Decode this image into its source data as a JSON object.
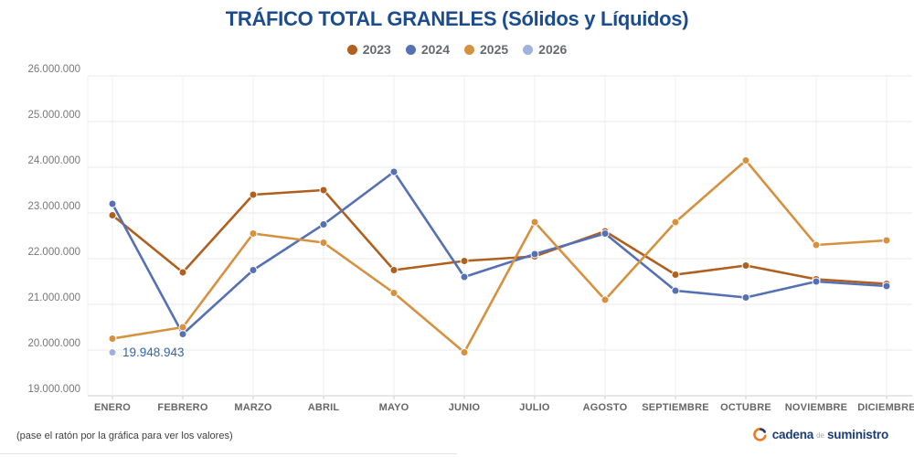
{
  "title": "TRÁFICO TOTAL GRANELES (Sólidos y Líquidos)",
  "footer": {
    "hint": "(pase el ratón por la gráfica para ver los valores)",
    "logo": {
      "part1": "cadena",
      "part2": "de",
      "part3": "suministro"
    }
  },
  "colors": {
    "title_blue": "#1b4c8f",
    "annotation_blue": "#3566a8",
    "grid_line": "#e8e8e8",
    "grid_line_vertical": "#efefef",
    "axis_line": "#cccccc",
    "y_label": "#777777",
    "x_label": "#666666",
    "logo_orange": "#e87c26",
    "logo_blue": "#223f77"
  },
  "chart_data": {
    "type": "line",
    "title": "TRÁFICO TOTAL GRANELES (Sólidos y Líquidos)",
    "categories": [
      "ENERO",
      "FEBRERO",
      "MARZO",
      "ABRIL",
      "MAYO",
      "JUNIO",
      "JULIO",
      "AGOSTO",
      "SEPTIEMBRE",
      "OCTUBRE",
      "NOVIEMBRE",
      "DICIEMBRE"
    ],
    "ylim": [
      19000000,
      26000000
    ],
    "y_tick_step": 1000000,
    "y_tick_labels": [
      "26.000.000",
      "25.000.000",
      "24.000.000",
      "23.000.000",
      "22.000.000",
      "21.000.000",
      "20.000.000",
      "19.000.000"
    ],
    "grid": true,
    "legend_position": "top",
    "series": [
      {
        "name": "2023",
        "color": "#b05f1e",
        "values": [
          22950000,
          21700000,
          23400000,
          23500000,
          21750000,
          21950000,
          22050000,
          22600000,
          21650000,
          21850000,
          21550000,
          21450000
        ]
      },
      {
        "name": "2024",
        "color": "#5571b4",
        "values": [
          23200000,
          20350000,
          21750000,
          22750000,
          23900000,
          21600000,
          22100000,
          22550000,
          21300000,
          21150000,
          21500000,
          21400000
        ]
      },
      {
        "name": "2025",
        "color": "#d6913e",
        "values": [
          20250000,
          20500000,
          22550000,
          22350000,
          21250000,
          19950000,
          22800000,
          21100000,
          22800000,
          24150000,
          22300000,
          22400000
        ]
      },
      {
        "name": "2026",
        "color": "#9fb2dd",
        "values": [
          19948943,
          null,
          null,
          null,
          null,
          null,
          null,
          null,
          null,
          null,
          null,
          null
        ]
      }
    ],
    "annotation": {
      "series": "2026",
      "index": 0,
      "label": "19.948.943"
    }
  }
}
